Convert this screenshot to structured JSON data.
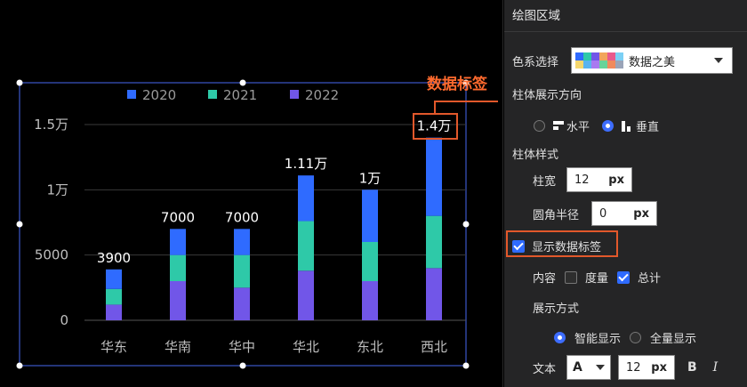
{
  "chart_data": {
    "type": "bar",
    "stacked": true,
    "categories": [
      "华东",
      "华南",
      "华中",
      "华北",
      "东北",
      "西北"
    ],
    "series": [
      {
        "name": "2020",
        "color": "#2f6bff",
        "values": [
          1500,
          2000,
          2000,
          3500,
          4000,
          6000
        ]
      },
      {
        "name": "2021",
        "color": "#2ec9a8",
        "values": [
          1200,
          2000,
          2500,
          3800,
          3000,
          4000
        ]
      },
      {
        "name": "2022",
        "color": "#7156e8",
        "values": [
          1200,
          3000,
          2500,
          3800,
          3000,
          4000
        ]
      }
    ],
    "totals_labels": [
      "3900",
      "7000",
      "7000",
      "1.11万",
      "1万",
      "1.4万"
    ],
    "y_ticks": [
      "0",
      "5000",
      "1万",
      "1.5万"
    ],
    "ylim": [
      0,
      15000
    ],
    "legend_position": "top",
    "grid": true
  },
  "annotation": {
    "text": "数据标签"
  },
  "panel": {
    "title": "绘图区域",
    "color_scheme": {
      "label": "色系选择",
      "value": "数据之美",
      "swatches": [
        "#2f6bff",
        "#2ec9a8",
        "#7156e8",
        "#f2a55c",
        "#e85a8c",
        "#7bd0f5",
        "#f5d76e",
        "#5ab4f0",
        "#a97af0",
        "#67d39a",
        "#f08a5d",
        "#9aa4b8"
      ]
    },
    "direction": {
      "label": "柱体展示方向",
      "options": [
        {
          "label": "水平",
          "selected": false
        },
        {
          "label": "垂直",
          "selected": true
        }
      ]
    },
    "bar_style": {
      "label": "柱体样式",
      "width_label": "柱宽",
      "width_value": "12",
      "width_unit": "px",
      "radius_label": "圆角半径",
      "radius_value": "0",
      "radius_unit": "px"
    },
    "show_labels": {
      "label": "显示数据标签",
      "checked": true
    },
    "content": {
      "label": "内容",
      "options": [
        {
          "label": "度量",
          "checked": false
        },
        {
          "label": "总计",
          "checked": true
        }
      ]
    },
    "display_mode": {
      "label": "展示方式",
      "options": [
        {
          "label": "智能显示",
          "selected": true
        },
        {
          "label": "全量显示",
          "selected": false
        }
      ]
    },
    "text": {
      "label": "文本",
      "font_glyph": "A",
      "size_value": "12",
      "size_unit": "px",
      "bold_glyph": "B",
      "italic_glyph": "I"
    }
  }
}
